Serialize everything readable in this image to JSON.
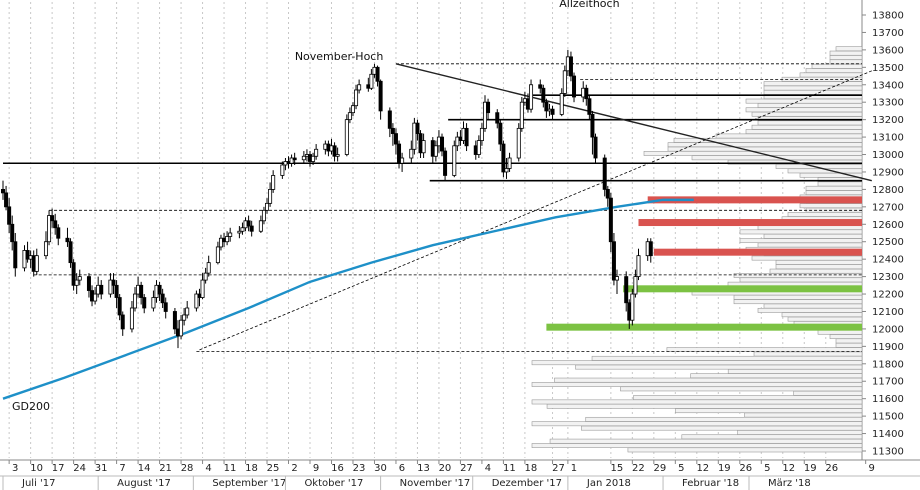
{
  "chart_data": {
    "type": "candlestick",
    "ylim": [
      11250,
      13880
    ],
    "y_ticks": [
      11300,
      11400,
      11500,
      11600,
      11700,
      11800,
      11900,
      12000,
      12100,
      12200,
      12300,
      12400,
      12500,
      12600,
      12700,
      12800,
      12900,
      13000,
      13100,
      13200,
      13300,
      13400,
      13500,
      13600,
      13700,
      13800
    ],
    "x_range": [
      0,
      245
    ],
    "x_ticks": [
      {
        "label": "3",
        "day": 2
      },
      {
        "label": "10",
        "day": 9
      },
      {
        "label": "17",
        "day": 16
      },
      {
        "label": "24",
        "day": 23
      },
      {
        "label": "31",
        "day": 30
      },
      {
        "label": "7",
        "day": 37
      },
      {
        "label": "14",
        "day": 44
      },
      {
        "label": "21",
        "day": 51
      },
      {
        "label": "28",
        "day": 58
      },
      {
        "label": "4",
        "day": 65
      },
      {
        "label": "11",
        "day": 72
      },
      {
        "label": "18",
        "day": 79
      },
      {
        "label": "25",
        "day": 86
      },
      {
        "label": "2",
        "day": 93
      },
      {
        "label": "9",
        "day": 100
      },
      {
        "label": "16",
        "day": 107
      },
      {
        "label": "23",
        "day": 114
      },
      {
        "label": "30",
        "day": 121
      },
      {
        "label": "6",
        "day": 128
      },
      {
        "label": "13",
        "day": 135
      },
      {
        "label": "20",
        "day": 142
      },
      {
        "label": "27",
        "day": 149
      },
      {
        "label": "4",
        "day": 156
      },
      {
        "label": "11",
        "day": 163
      },
      {
        "label": "18",
        "day": 170
      },
      {
        "label": "27",
        "day": 179
      },
      {
        "label": "1",
        "day": 184
      },
      {
        "label": "15",
        "day": 198
      },
      {
        "label": "22",
        "day": 205
      },
      {
        "label": "29",
        "day": 212
      },
      {
        "label": "5",
        "day": 219
      },
      {
        "label": "12",
        "day": 226
      },
      {
        "label": "19",
        "day": 233
      },
      {
        "label": "26",
        "day": 240
      },
      {
        "label": "5",
        "day": 247
      },
      {
        "label": "12",
        "day": 254
      },
      {
        "label": "19",
        "day": 261
      },
      {
        "label": "26",
        "day": 268
      },
      {
        "label": "9",
        "day": 281
      }
    ],
    "months": [
      {
        "label": "Juli '17",
        "day": 0
      },
      {
        "label": "August '17",
        "day": 31
      },
      {
        "label": "September '17",
        "day": 62
      },
      {
        "label": "Oktober '17",
        "day": 92
      },
      {
        "label": "November '17",
        "day": 123
      },
      {
        "label": "Dezember '17",
        "day": 153
      },
      {
        "label": "Jan 2018",
        "day": 184
      },
      {
        "label": "Februar '18",
        "day": 215
      },
      {
        "label": "März '18",
        "day": 243
      }
    ],
    "annotations": [
      {
        "text": "November-Hoch",
        "day": 126,
        "value": 13520
      },
      {
        "text": "Allzeithoch",
        "day": 204,
        "value": 13595
      },
      {
        "text": "GD200",
        "day": 0,
        "value": 11530
      }
    ],
    "horizontal_levels": [
      {
        "value": 12950,
        "style": "solid",
        "color": "#000000",
        "from_day": 0
      },
      {
        "value": 13340,
        "style": "solid",
        "color": "#000000",
        "from_day": 172
      },
      {
        "value": 13200,
        "style": "solid",
        "color": "#000000",
        "from_day": 145
      },
      {
        "value": 12850,
        "style": "solid",
        "color": "#000000",
        "from_day": 139
      },
      {
        "value": 13520,
        "style": "dashed",
        "color": "#000000",
        "from_day": 128
      },
      {
        "value": 13430,
        "style": "dashed",
        "color": "#000000",
        "from_day": 188
      },
      {
        "value": 12680,
        "style": "dashed",
        "color": "#000000",
        "from_day": 15
      },
      {
        "value": 12310,
        "style": "dashed",
        "color": "#000000",
        "from_day": 10
      },
      {
        "value": 11870,
        "style": "dashed",
        "color": "#000000",
        "from_day": 63
      }
    ],
    "zones": [
      {
        "value": 12740,
        "color": "#d9534f",
        "from_day": 210
      },
      {
        "value": 12610,
        "color": "#d9534f",
        "from_day": 207
      },
      {
        "value": 12440,
        "color": "#d9534f",
        "from_day": 212
      },
      {
        "value": 12230,
        "color": "#7cc243",
        "from_day": 202
      },
      {
        "value": 12010,
        "color": "#7cc243",
        "from_day": 177
      }
    ],
    "trendlines": [
      {
        "from": [
          128,
          13520
        ],
        "to": [
          283,
          12850
        ],
        "style": "solid",
        "color": "#222222"
      },
      {
        "from": [
          64,
          11880
        ],
        "to": [
          283,
          13480
        ],
        "style": "dashed",
        "color": "#000000"
      }
    ],
    "moving_average": {
      "name": "GD200",
      "color": "#1e90c8",
      "points": [
        [
          0,
          11600
        ],
        [
          20,
          11720
        ],
        [
          40,
          11850
        ],
        [
          60,
          11980
        ],
        [
          80,
          12120
        ],
        [
          100,
          12270
        ],
        [
          120,
          12380
        ],
        [
          140,
          12480
        ],
        [
          160,
          12560
        ],
        [
          180,
          12640
        ],
        [
          200,
          12700
        ],
        [
          215,
          12740
        ],
        [
          225,
          12740
        ]
      ]
    },
    "candles": [
      [
        0,
        12800,
        12780,
        12850,
        12740
      ],
      [
        1,
        12780,
        12700,
        12820,
        12680
      ],
      [
        2,
        12700,
        12600,
        12750,
        12550
      ],
      [
        3,
        12600,
        12500,
        12650,
        12450
      ],
      [
        4,
        12500,
        12350,
        12550,
        12300
      ],
      [
        7,
        12350,
        12450,
        12480,
        12330
      ],
      [
        8,
        12450,
        12400,
        12500,
        12380
      ],
      [
        9,
        12400,
        12420,
        12450,
        12350
      ],
      [
        10,
        12420,
        12330,
        12450,
        12300
      ],
      [
        11,
        12330,
        12420,
        12460,
        12310
      ],
      [
        14,
        12420,
        12500,
        12560,
        12400
      ],
      [
        15,
        12500,
        12650,
        12680,
        12480
      ],
      [
        16,
        12650,
        12620,
        12690,
        12580
      ],
      [
        17,
        12620,
        12580,
        12660,
        12540
      ],
      [
        18,
        12580,
        12520,
        12600,
        12480
      ],
      [
        21,
        12520,
        12500,
        12580,
        12470
      ],
      [
        22,
        12500,
        12380,
        12520,
        12350
      ],
      [
        23,
        12380,
        12250,
        12400,
        12220
      ],
      [
        24,
        12250,
        12280,
        12320,
        12200
      ],
      [
        25,
        12280,
        12300,
        12340,
        12250
      ],
      [
        28,
        12300,
        12220,
        12320,
        12180
      ],
      [
        29,
        12220,
        12160,
        12250,
        12130
      ],
      [
        30,
        12160,
        12200,
        12240,
        12140
      ],
      [
        31,
        12200,
        12250,
        12300,
        12180
      ],
      [
        32,
        12250,
        12200,
        12280,
        12170
      ],
      [
        35,
        12200,
        12280,
        12320,
        12180
      ],
      [
        36,
        12280,
        12250,
        12320,
        12200
      ],
      [
        37,
        12250,
        12180,
        12280,
        12120
      ],
      [
        38,
        12180,
        12080,
        12200,
        12050
      ],
      [
        39,
        12080,
        12000,
        12100,
        11960
      ],
      [
        42,
        12000,
        12120,
        12160,
        11980
      ],
      [
        43,
        12120,
        12200,
        12240,
        12100
      ],
      [
        44,
        12200,
        12250,
        12300,
        12180
      ],
      [
        45,
        12250,
        12180,
        12270,
        12140
      ],
      [
        46,
        12180,
        12120,
        12200,
        12090
      ],
      [
        49,
        12120,
        12180,
        12220,
        12100
      ],
      [
        50,
        12180,
        12250,
        12280,
        12150
      ],
      [
        51,
        12250,
        12200,
        12270,
        12160
      ],
      [
        52,
        12200,
        12150,
        12230,
        12120
      ],
      [
        53,
        12150,
        12100,
        12180,
        12060
      ],
      [
        56,
        12100,
        12000,
        12120,
        11970
      ],
      [
        57,
        12000,
        11960,
        12050,
        11890
      ],
      [
        58,
        11960,
        12050,
        12080,
        11940
      ],
      [
        59,
        12050,
        12080,
        12120,
        12020
      ],
      [
        60,
        12080,
        12120,
        12160,
        12060
      ],
      [
        63,
        12120,
        12200,
        12220,
        12100
      ],
      [
        64,
        12200,
        12180,
        12230,
        12130
      ],
      [
        65,
        12180,
        12280,
        12320,
        12170
      ],
      [
        66,
        12280,
        12320,
        12350,
        12260
      ],
      [
        67,
        12320,
        12380,
        12420,
        12300
      ],
      [
        70,
        12380,
        12470,
        12500,
        12370
      ],
      [
        71,
        12470,
        12520,
        12540,
        12450
      ],
      [
        72,
        12520,
        12500,
        12550,
        12470
      ],
      [
        73,
        12500,
        12530,
        12560,
        12480
      ],
      [
        74,
        12530,
        12550,
        12580,
        12500
      ],
      [
        77,
        12550,
        12560,
        12590,
        12520
      ],
      [
        78,
        12560,
        12580,
        12610,
        12540
      ],
      [
        79,
        12580,
        12620,
        12640,
        12560
      ],
      [
        80,
        12620,
        12590,
        12650,
        12560
      ],
      [
        81,
        12590,
        12560,
        12620,
        12530
      ],
      [
        84,
        12560,
        12620,
        12650,
        12550
      ],
      [
        85,
        12620,
        12680,
        12700,
        12600
      ],
      [
        86,
        12680,
        12720,
        12750,
        12660
      ],
      [
        87,
        12720,
        12800,
        12840,
        12700
      ],
      [
        88,
        12800,
        12880,
        12910,
        12780
      ],
      [
        91,
        12880,
        12940,
        12960,
        12860
      ],
      [
        92,
        12940,
        12960,
        12980,
        12910
      ],
      [
        93,
        12960,
        12950,
        12990,
        12920
      ],
      [
        94,
        12950,
        12980,
        13000,
        12930
      ],
      [
        95,
        12980,
        12970,
        13010,
        12940
      ],
      [
        98,
        12970,
        12990,
        13020,
        12950
      ],
      [
        99,
        12990,
        13000,
        13030,
        12960
      ],
      [
        100,
        13000,
        12960,
        13020,
        12930
      ],
      [
        101,
        12960,
        12990,
        13010,
        12940
      ],
      [
        102,
        12990,
        13030,
        13060,
        12970
      ],
      [
        105,
        13030,
        13060,
        13080,
        13000
      ],
      [
        106,
        13060,
        13020,
        13080,
        12990
      ],
      [
        107,
        13020,
        13050,
        13090,
        13000
      ],
      [
        108,
        13050,
        12990,
        13070,
        12960
      ],
      [
        109,
        12990,
        13000,
        13040,
        12960
      ],
      [
        112,
        13000,
        13200,
        13230,
        12990
      ],
      [
        113,
        13200,
        13240,
        13270,
        13180
      ],
      [
        114,
        13240,
        13280,
        13300,
        13220
      ],
      [
        115,
        13280,
        13370,
        13400,
        13260
      ],
      [
        116,
        13370,
        13400,
        13430,
        13350
      ],
      [
        119,
        13400,
        13380,
        13440,
        13360
      ],
      [
        120,
        13380,
        13460,
        13490,
        13370
      ],
      [
        121,
        13460,
        13500,
        13520,
        13440
      ],
      [
        122,
        13500,
        13420,
        13510,
        13390
      ],
      [
        123,
        13420,
        13250,
        13430,
        13200
      ],
      [
        126,
        13250,
        13150,
        13270,
        13100
      ],
      [
        127,
        13150,
        13120,
        13180,
        13050
      ],
      [
        128,
        13120,
        13060,
        13150,
        13000
      ],
      [
        129,
        13060,
        12950,
        13080,
        12920
      ],
      [
        130,
        12950,
        12980,
        13010,
        12900
      ],
      [
        133,
        12980,
        13030,
        13080,
        12950
      ],
      [
        134,
        13030,
        13180,
        13210,
        13000
      ],
      [
        135,
        13180,
        13120,
        13200,
        13080
      ],
      [
        136,
        13120,
        13010,
        13140,
        12980
      ],
      [
        137,
        13010,
        13080,
        13120,
        12980
      ],
      [
        140,
        13080,
        12990,
        13100,
        12950
      ],
      [
        141,
        12990,
        13050,
        13080,
        12960
      ],
      [
        142,
        13050,
        13100,
        13140,
        13010
      ],
      [
        143,
        13100,
        13020,
        13120,
        12990
      ],
      [
        144,
        13020,
        12880,
        13040,
        12850
      ],
      [
        147,
        12880,
        13050,
        13080,
        12870
      ],
      [
        148,
        13050,
        13100,
        13130,
        13020
      ],
      [
        149,
        13100,
        13080,
        13140,
        13050
      ],
      [
        150,
        13080,
        13150,
        13190,
        13060
      ],
      [
        151,
        13150,
        13050,
        13180,
        13020
      ],
      [
        154,
        13050,
        13000,
        13080,
        12970
      ],
      [
        155,
        13000,
        13080,
        13110,
        12980
      ],
      [
        156,
        13080,
        13150,
        13180,
        13050
      ],
      [
        157,
        13150,
        13300,
        13340,
        13130
      ],
      [
        158,
        13300,
        13240,
        13320,
        13200
      ],
      [
        161,
        13240,
        13180,
        13260,
        13150
      ],
      [
        162,
        13180,
        13060,
        13200,
        13020
      ],
      [
        163,
        13060,
        12900,
        13080,
        12870
      ],
      [
        164,
        12900,
        12920,
        12980,
        12860
      ],
      [
        165,
        12920,
        12980,
        13010,
        12900
      ],
      [
        168,
        12980,
        13150,
        13180,
        12960
      ],
      [
        169,
        13150,
        13300,
        13330,
        13130
      ],
      [
        170,
        13300,
        13320,
        13360,
        13280
      ],
      [
        171,
        13320,
        13260,
        13350,
        13240
      ],
      [
        172,
        13260,
        13400,
        13430,
        13240
      ],
      [
        175,
        13400,
        13380,
        13430,
        13350
      ],
      [
        176,
        13380,
        13300,
        13400,
        13270
      ],
      [
        177,
        13300,
        13250,
        13320,
        13210
      ],
      [
        178,
        13250,
        13260,
        13290,
        13220
      ],
      [
        179,
        13260,
        13230,
        13280,
        13200
      ],
      [
        182,
        13230,
        13350,
        13380,
        13220
      ],
      [
        183,
        13350,
        13480,
        13510,
        13330
      ],
      [
        184,
        13480,
        13560,
        13600,
        13450
      ],
      [
        185,
        13560,
        13450,
        13590,
        13420
      ],
      [
        186,
        13450,
        13330,
        13470,
        13300
      ],
      [
        189,
        13330,
        13380,
        13420,
        13300
      ],
      [
        190,
        13380,
        13320,
        13400,
        13280
      ],
      [
        191,
        13320,
        13230,
        13340,
        13200
      ],
      [
        192,
        13230,
        13100,
        13250,
        13000
      ],
      [
        193,
        13100,
        12980,
        13120,
        12950
      ],
      [
        196,
        12980,
        12800,
        13000,
        12760
      ],
      [
        197,
        12800,
        12750,
        12820,
        12700
      ],
      [
        198,
        12750,
        12500,
        12780,
        12440
      ],
      [
        199,
        12500,
        12280,
        12550,
        12250
      ],
      [
        200,
        12280,
        12300,
        12340,
        12200
      ],
      [
        203,
        12300,
        12150,
        12330,
        12100
      ],
      [
        204,
        12150,
        12050,
        12170,
        12000
      ],
      [
        205,
        12050,
        12200,
        12230,
        12020
      ],
      [
        206,
        12200,
        12300,
        12340,
        12180
      ],
      [
        207,
        12300,
        12420,
        12460,
        12280
      ],
      [
        210,
        12420,
        12500,
        12520,
        12390
      ],
      [
        211,
        12500,
        12420,
        12520,
        12380
      ]
    ]
  }
}
